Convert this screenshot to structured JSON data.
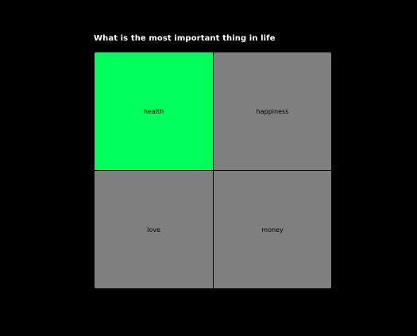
{
  "poll": {
    "question": "What is the most important thing in life",
    "options": [
      {
        "label": "health",
        "selected": true,
        "color": "#00ff5a"
      },
      {
        "label": "happiness",
        "selected": false,
        "color": "#7f7f7f"
      },
      {
        "label": "love",
        "selected": false,
        "color": "#7f7f7f"
      },
      {
        "label": "money",
        "selected": false,
        "color": "#7f7f7f"
      }
    ]
  }
}
